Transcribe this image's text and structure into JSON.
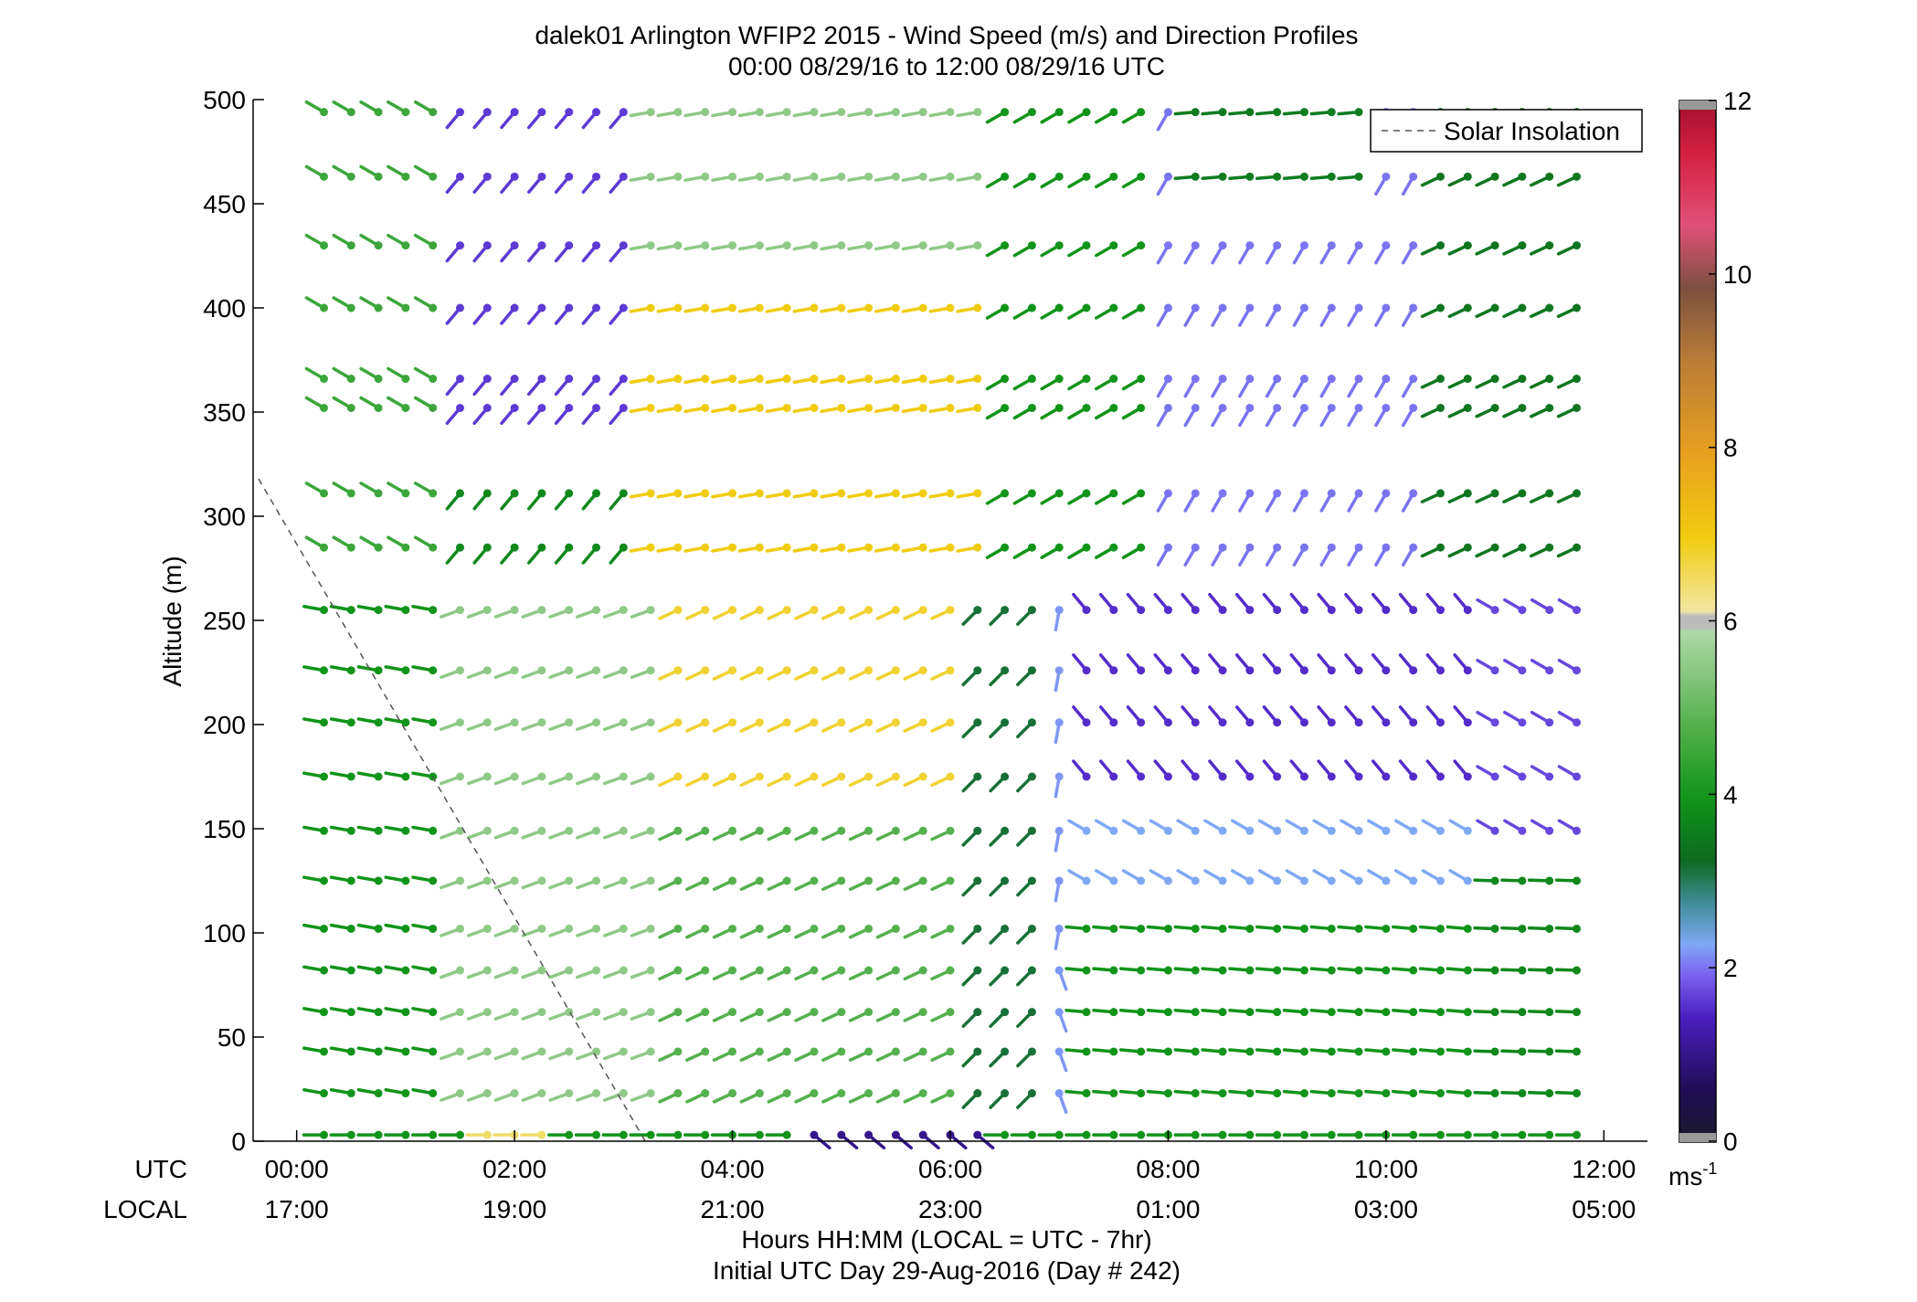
{
  "title": "dalek01 Arlington WFIP2 2015 - Wind Speed (m/s) and Direction Profiles",
  "subtitle": "00:00 08/29/16 to 12:00 08/29/16  UTC",
  "xlabel": "Hours HH:MM  (LOCAL = UTC - 7hr)",
  "xlabel2": "Initial UTC Day 29-Aug-2016 (Day # 242)",
  "ylabel": "Altitude (m)",
  "row_labels": {
    "utc": "UTC",
    "local": "LOCAL"
  },
  "colorbar_unit": {
    "base": "ms",
    "exp": "-1"
  },
  "legend_label": "Solar Insolation",
  "chart_data": {
    "type": "wind_barb_profile",
    "x_range_hours": [
      -0.4,
      12.4
    ],
    "ylim": [
      0,
      500
    ],
    "y_ticks": [
      "0",
      "50",
      "100",
      "150",
      "200",
      "250",
      "300",
      "350",
      "400",
      "450",
      "500"
    ],
    "x_ticks": [
      {
        "hour": 0,
        "utc": "00:00",
        "local": "17:00"
      },
      {
        "hour": 2,
        "utc": "02:00",
        "local": "19:00"
      },
      {
        "hour": 4,
        "utc": "04:00",
        "local": "21:00"
      },
      {
        "hour": 6,
        "utc": "06:00",
        "local": "23:00"
      },
      {
        "hour": 8,
        "utc": "08:00",
        "local": "01:00"
      },
      {
        "hour": 10,
        "utc": "10:00",
        "local": "03:00"
      },
      {
        "hour": 12,
        "utc": "12:00",
        "local": "05:00"
      }
    ],
    "colorbar": {
      "min": 0,
      "max": 12,
      "ticks": [
        "0",
        "2",
        "4",
        "6",
        "8",
        "10",
        "12"
      ]
    },
    "solar_insolation_line": [
      [
        -0.35,
        318
      ],
      [
        3.2,
        0
      ]
    ],
    "altitudes_m": [
      3,
      23,
      43,
      62,
      82,
      102,
      125,
      149,
      175,
      201,
      226,
      255,
      285,
      311,
      352,
      366,
      400,
      430,
      463,
      494
    ],
    "times_h": [
      0.25,
      0.5,
      0.75,
      1.0,
      1.25,
      1.5,
      1.75,
      2.0,
      2.25,
      2.5,
      2.75,
      3.0,
      3.25,
      3.5,
      3.75,
      4.0,
      4.25,
      4.5,
      4.75,
      5.0,
      5.25,
      5.5,
      5.75,
      6.0,
      6.25,
      6.5,
      6.75,
      7.0,
      7.25,
      7.5,
      7.75,
      8.0,
      8.25,
      8.5,
      8.75,
      9.0,
      9.25,
      9.5,
      9.75,
      10.0,
      10.25,
      10.5,
      10.75,
      11.0,
      11.25,
      11.5,
      11.75
    ],
    "speed_key": "speed ms-1",
    "direction_key": "direction deg"
  }
}
